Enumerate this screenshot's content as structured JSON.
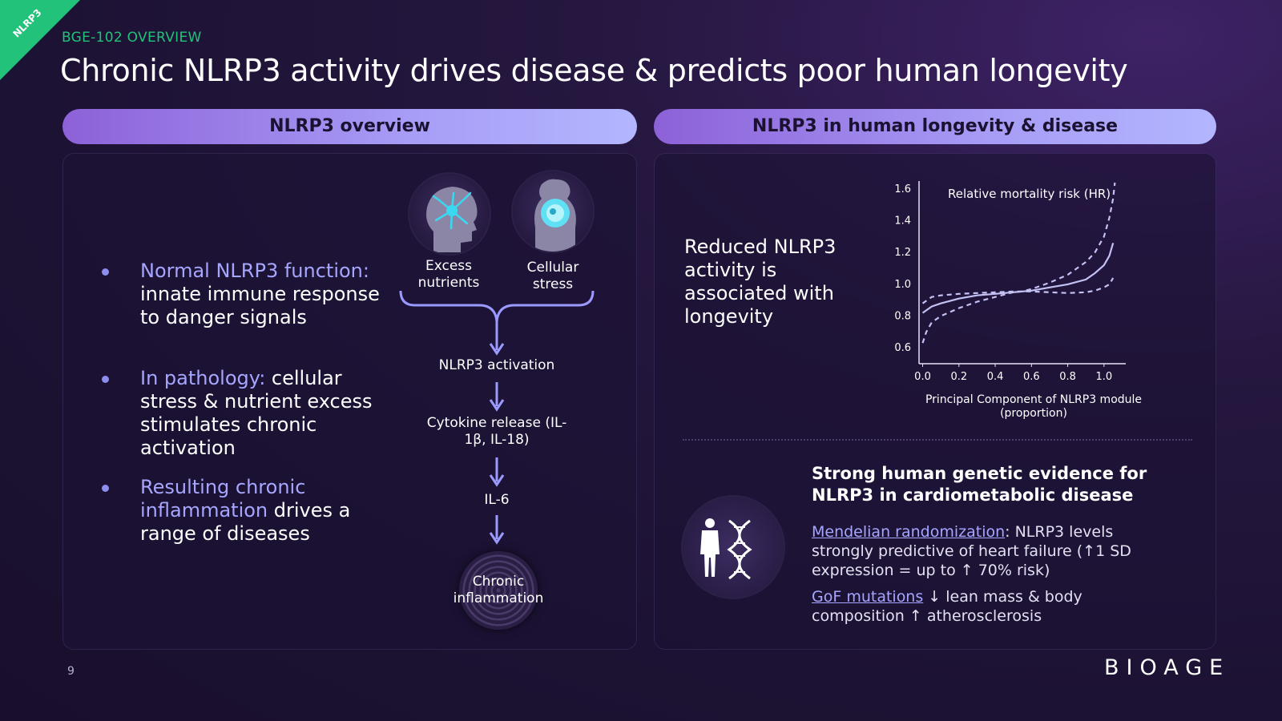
{
  "ribbon": "NLRP3",
  "kicker": "BGE-102 OVERVIEW",
  "title": "Chronic NLRP3 activity drives disease & predicts poor human longevity",
  "left": {
    "header": "NLRP3 overview",
    "bullets": [
      {
        "highlight": "Normal NLRP3 function:",
        "text": " innate immune response to danger signals"
      },
      {
        "highlight": "In pathology:",
        "text": " cellular stress & nutrient excess stimulates chronic activation"
      },
      {
        "highlight": "Resulting chronic inflammation",
        "text": " drives a range of diseases"
      }
    ],
    "flow": {
      "inputs": [
        {
          "label": "Excess nutrients",
          "icon": "brain-neuron-icon"
        },
        {
          "label": "Cellular stress",
          "icon": "stressed-cell-icon"
        }
      ],
      "steps": [
        "NLRP3 activation",
        "Cytokine release (IL-1β, IL-18)",
        "IL-6"
      ],
      "outcome": "Chronic inflammation"
    }
  },
  "right": {
    "header": "NLRP3 in human longevity & disease",
    "statement": "Reduced NLRP3 activity is associated with longevity",
    "genetic_title": "Strong human genetic evidence for NLRP3 in cardiometabolic disease",
    "mr_link": "Mendelian randomization",
    "mr_text": ": NLRP3 levels strongly predictive of heart failure (↑1 SD expression = up to ↑ 70% risk)",
    "gof_link": "GoF mutations",
    "gof_text": " ↓ lean mass & body composition  ↑ atherosclerosis"
  },
  "chart_data": {
    "type": "line",
    "title": "Relative mortality risk (HR)",
    "xlabel": "Principal Component of NLRP3 module (proportion)",
    "ylabel": "",
    "xlim": [
      -0.02,
      1.12
    ],
    "ylim": [
      0.5,
      1.65
    ],
    "xticks": [
      "0.0",
      "0.2",
      "0.4",
      "0.6",
      "0.8",
      "1.0"
    ],
    "yticks": [
      "0.6",
      "0.8",
      "1.0",
      "1.2",
      "1.4",
      "1.6"
    ],
    "series": [
      {
        "style": "solid",
        "x": [
          0.0,
          0.05,
          0.1,
          0.2,
          0.3,
          0.4,
          0.5,
          0.55,
          0.6,
          0.7,
          0.8,
          0.9,
          0.95,
          1.0,
          1.03,
          1.05
        ],
        "y": [
          0.82,
          0.86,
          0.88,
          0.91,
          0.93,
          0.94,
          0.95,
          0.955,
          0.96,
          0.98,
          1.0,
          1.03,
          1.07,
          1.12,
          1.18,
          1.26
        ]
      },
      {
        "style": "dashed",
        "x": [
          0.0,
          0.02,
          0.05,
          0.1,
          0.2,
          0.3,
          0.4,
          0.5,
          0.55,
          0.6,
          0.7,
          0.8,
          0.9,
          0.95,
          1.0,
          1.03,
          1.05,
          1.06
        ],
        "y": [
          0.63,
          0.7,
          0.76,
          0.8,
          0.85,
          0.89,
          0.92,
          0.95,
          0.955,
          0.97,
          1.01,
          1.06,
          1.14,
          1.2,
          1.3,
          1.42,
          1.54,
          1.64
        ]
      },
      {
        "style": "dashed",
        "x": [
          0.0,
          0.05,
          0.1,
          0.2,
          0.3,
          0.4,
          0.5,
          0.55,
          0.6,
          0.7,
          0.8,
          0.9,
          0.95,
          1.0,
          1.03,
          1.05
        ],
        "y": [
          0.88,
          0.92,
          0.93,
          0.94,
          0.945,
          0.95,
          0.955,
          0.955,
          0.955,
          0.95,
          0.945,
          0.95,
          0.96,
          0.98,
          1.0,
          1.04
        ]
      }
    ],
    "line_color": "#c4c1f5",
    "grid": false
  },
  "page_number": "9",
  "logo": "BIOAGE",
  "colors": {
    "accent_green": "#22c27a",
    "highlight": "#a6a6ff",
    "arrow": "#9a9aff"
  }
}
